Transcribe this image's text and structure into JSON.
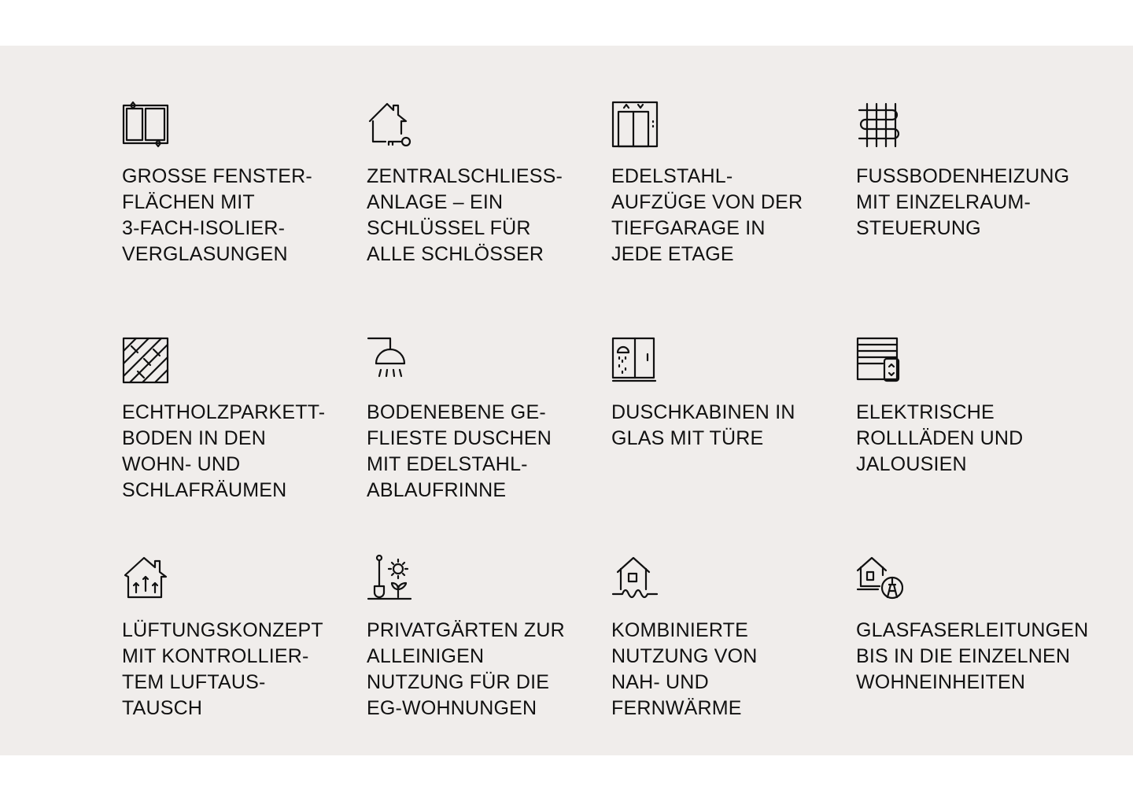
{
  "features": [
    {
      "icon": "window-icon",
      "label": "GROSSE FENSTER-\nFLÄCHEN MIT\n3-FACH-ISOLIER-\nVERGLASUNGEN"
    },
    {
      "icon": "house-key-icon",
      "label": "ZENTRALSCHLIESS-\nANLAGE – EIN\nSCHLÜSSEL FÜR\nALLE SCHLÖSSER"
    },
    {
      "icon": "elevator-icon",
      "label": "EDELSTAHL-\nAUFZÜGE VON DER\nTIEFGARAGE IN\nJEDE ETAGE"
    },
    {
      "icon": "floor-heating-icon",
      "label": "FUSSBODENHEIZUNG\nMIT EINZELRAUM-\nSTEUERUNG"
    },
    {
      "icon": "parquet-icon",
      "label": "ECHTHOLZPARKETT-\nBODEN IN DEN\nWOHN- UND\nSCHLAFRÄUMEN"
    },
    {
      "icon": "shower-icon",
      "label": "BODENEBENE GE-\nFLIESTE DUSCHEN\nMIT EDELSTAHL-\nABLAUFRINNE"
    },
    {
      "icon": "shower-cabin-icon",
      "label": "DUSCHKABINEN IN\nGLAS MIT TÜRE"
    },
    {
      "icon": "roller-shutter-icon",
      "label": "ELEKTRISCHE\nROLLLÄDEN UND\nJALOUSIEN"
    },
    {
      "icon": "ventilation-house-icon",
      "label": "LÜFTUNGSKONZEPT\nMIT KONTROLLIER-\nTEM LUFTAUS-\nTAUSCH"
    },
    {
      "icon": "garden-icon",
      "label": "PRIVATGÄRTEN ZUR\nALLEINIGEN\nNUTZUNG FÜR DIE\nEG-WOHNUNGEN"
    },
    {
      "icon": "district-heating-icon",
      "label": "KOMBINIERTE\nNUTZUNG VON\nNAH- UND\nFERNWÄRME"
    },
    {
      "icon": "fiber-house-icon",
      "label": "GLASFASERLEITUNGEN\nBIS IN DIE EINZELNEN\nWOHNEINHEITEN"
    }
  ]
}
